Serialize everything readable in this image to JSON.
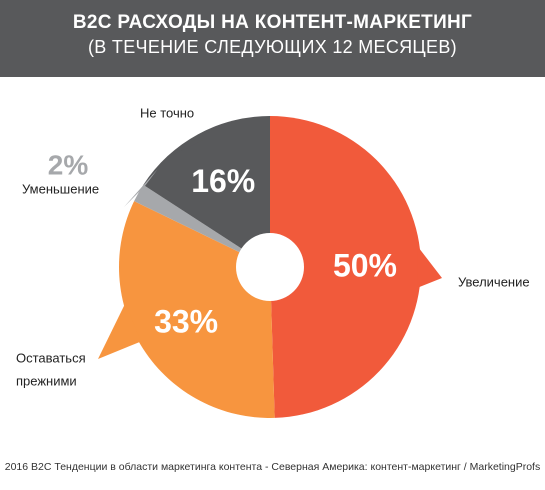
{
  "header": {
    "title_line1": "B2C РАСХОДЫ НА КОНТЕНТ-МАРКЕТИНГ",
    "title_line2": "(В ТЕЧЕНИЕ СЛЕДУЮЩИХ 12 МЕСЯЦЕВ)"
  },
  "chart_data": {
    "type": "pie",
    "slices": [
      {
        "label": "Увеличение",
        "value": 50,
        "value_label": "50%",
        "color": "#f15a3b"
      },
      {
        "label_lines": [
          "Оставаться",
          "прежними"
        ],
        "value": 33,
        "value_label": "33%",
        "color": "#f7953f"
      },
      {
        "label": "Уменьшение",
        "value": 2,
        "value_label": "2%",
        "color": "#a6a8ab"
      },
      {
        "label": "Не точно",
        "value": 16,
        "value_label": "16%",
        "color": "#58595b"
      }
    ]
  },
  "footer": {
    "source": "2016 B2C Тенденции в области маркетинга контента - Северная Америка: контент-маркетинг / MarketingProfs"
  }
}
